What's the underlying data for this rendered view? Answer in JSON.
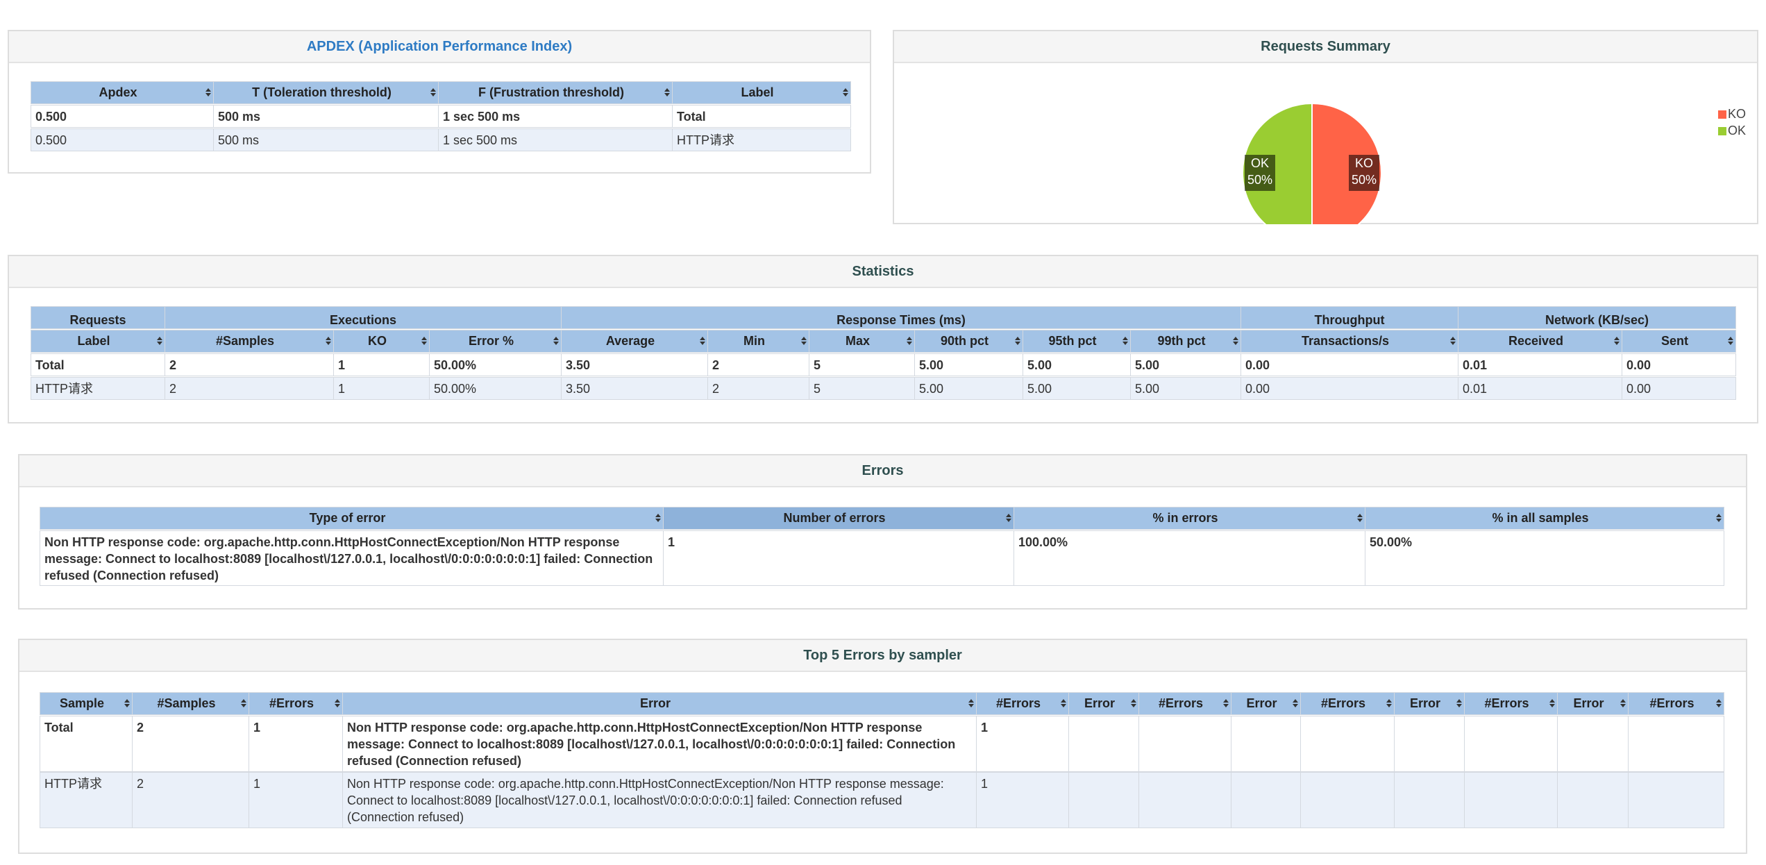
{
  "apdex": {
    "title": "APDEX (Application Performance Index)",
    "headers": [
      "Apdex",
      "T (Toleration threshold)",
      "F (Frustration threshold)",
      "Label"
    ],
    "rows": [
      [
        "0.500",
        "500 ms",
        "1 sec 500 ms",
        "Total"
      ],
      [
        "0.500",
        "500 ms",
        "1 sec 500 ms",
        "HTTP请求"
      ]
    ]
  },
  "requests_summary": {
    "title": "Requests Summary",
    "slices": [
      {
        "name": "KO",
        "value": 50,
        "value_label": "50%",
        "color": "#ff6347"
      },
      {
        "name": "OK",
        "value": 50,
        "value_label": "50%",
        "color": "#9acd32"
      }
    ]
  },
  "statistics": {
    "title": "Statistics",
    "groups": [
      "Requests",
      "Executions",
      "Response Times (ms)",
      "Throughput",
      "Network (KB/sec)"
    ],
    "headers": [
      "Label",
      "#Samples",
      "KO",
      "Error %",
      "Average",
      "Min",
      "Max",
      "90th pct",
      "95th pct",
      "99th pct",
      "Transactions/s",
      "Received",
      "Sent"
    ],
    "rows": [
      [
        "Total",
        "2",
        "1",
        "50.00%",
        "3.50",
        "2",
        "5",
        "5.00",
        "5.00",
        "5.00",
        "0.00",
        "0.01",
        "0.00"
      ],
      [
        "HTTP请求",
        "2",
        "1",
        "50.00%",
        "3.50",
        "2",
        "5",
        "5.00",
        "5.00",
        "5.00",
        "0.00",
        "0.01",
        "0.00"
      ]
    ]
  },
  "errors": {
    "title": "Errors",
    "headers": [
      "Type of error",
      "Number of errors",
      "% in errors",
      "% in all samples"
    ],
    "rows": [
      [
        "Non HTTP response code: org.apache.http.conn.HttpHostConnectException/Non HTTP response message: Connect to localhost:8089 [localhost\\/127.0.0.1, localhost\\/0:0:0:0:0:0:0:1] failed: Connection refused (Connection refused)",
        "1",
        "100.00%",
        "50.00%"
      ]
    ]
  },
  "top_errors": {
    "title": "Top 5 Errors by sampler",
    "headers": [
      "Sample",
      "#Samples",
      "#Errors",
      "Error",
      "#Errors",
      "Error",
      "#Errors",
      "Error",
      "#Errors",
      "Error",
      "#Errors",
      "Error",
      "#Errors"
    ],
    "rows": [
      [
        "Total",
        "2",
        "1",
        "Non HTTP response code: org.apache.http.conn.HttpHostConnectException/Non HTTP response message: Connect to localhost:8089 [localhost\\/127.0.0.1, localhost\\/0:0:0:0:0:0:0:1] failed: Connection refused (Connection refused)",
        "1"
      ],
      [
        "HTTP请求",
        "2",
        "1",
        "Non HTTP response code: org.apache.http.conn.HttpHostConnectException/Non HTTP response message: Connect to localhost:8089 [localhost\\/127.0.0.1, localhost\\/0:0:0:0:0:0:0:1] failed: Connection refused (Connection refused)",
        "1"
      ]
    ]
  }
}
